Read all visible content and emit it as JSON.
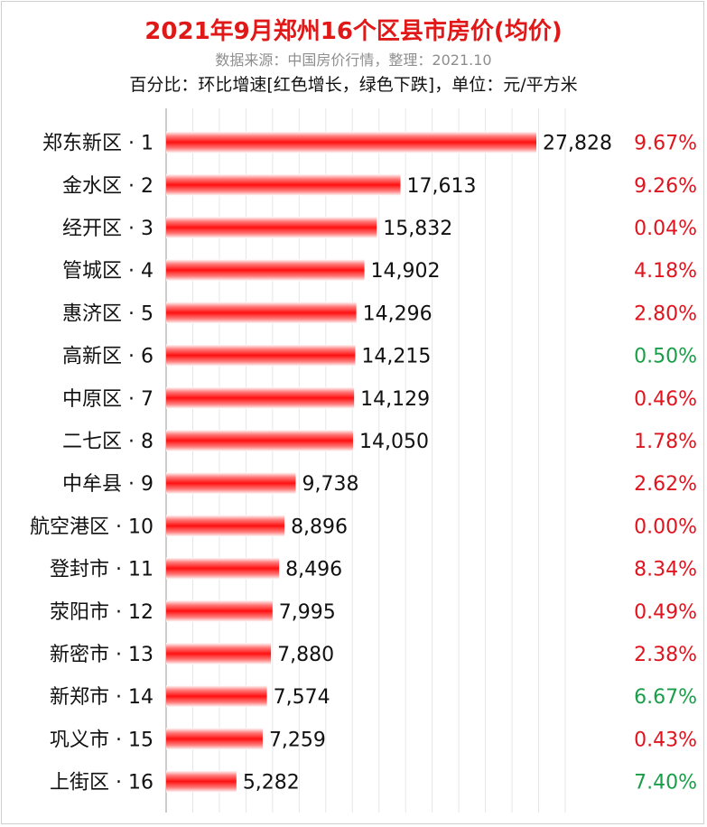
{
  "header": {
    "title": "2021年9月郑州16个区县市房价(均价)",
    "source": "数据来源：中国房价行情，整理：2021.10",
    "note": "百分比：环比增速[红色增长，绿色下跌]，单位：元/平方米"
  },
  "colors": {
    "bar": "#ff1a1a",
    "increase": "#e0141e",
    "decrease": "#1a9e48",
    "title": "#e01818"
  },
  "chart_data": {
    "type": "bar",
    "orientation": "horizontal",
    "unit": "元/平方米",
    "xlim": [
      0,
      30000
    ],
    "grid": true,
    "categories": [
      "郑东新区 · 1",
      "金水区 · 2",
      "经开区 · 3",
      "管城区 · 4",
      "惠济区 · 5",
      "高新区 · 6",
      "中原区 · 7",
      "二七区 · 8",
      "中牟县 · 9",
      "航空港区 · 10",
      "登封市 · 11",
      "荥阳市 · 12",
      "新密市 · 13",
      "新郑市 · 14",
      "巩义市 · 15",
      "上街区 · 16"
    ],
    "values": [
      27828,
      17613,
      15832,
      14902,
      14296,
      14215,
      14129,
      14050,
      9738,
      8896,
      8496,
      7995,
      7880,
      7574,
      7259,
      5282
    ],
    "value_labels": [
      "27,828",
      "17,613",
      "15,832",
      "14,902",
      "14,296",
      "14,215",
      "14,129",
      "14,050",
      "9,738",
      "8,896",
      "8,496",
      "7,995",
      "7,880",
      "7,574",
      "7,259",
      "5,282"
    ],
    "mom_change": [
      "9.67%",
      "9.26%",
      "0.04%",
      "4.18%",
      "2.80%",
      "0.50%",
      "0.46%",
      "1.78%",
      "2.62%",
      "0.00%",
      "8.34%",
      "0.49%",
      "2.38%",
      "6.67%",
      "0.43%",
      "7.40%"
    ],
    "mom_direction": [
      "up",
      "up",
      "up",
      "up",
      "up",
      "down",
      "up",
      "up",
      "up",
      "up",
      "up",
      "up",
      "up",
      "down",
      "up",
      "down"
    ]
  }
}
